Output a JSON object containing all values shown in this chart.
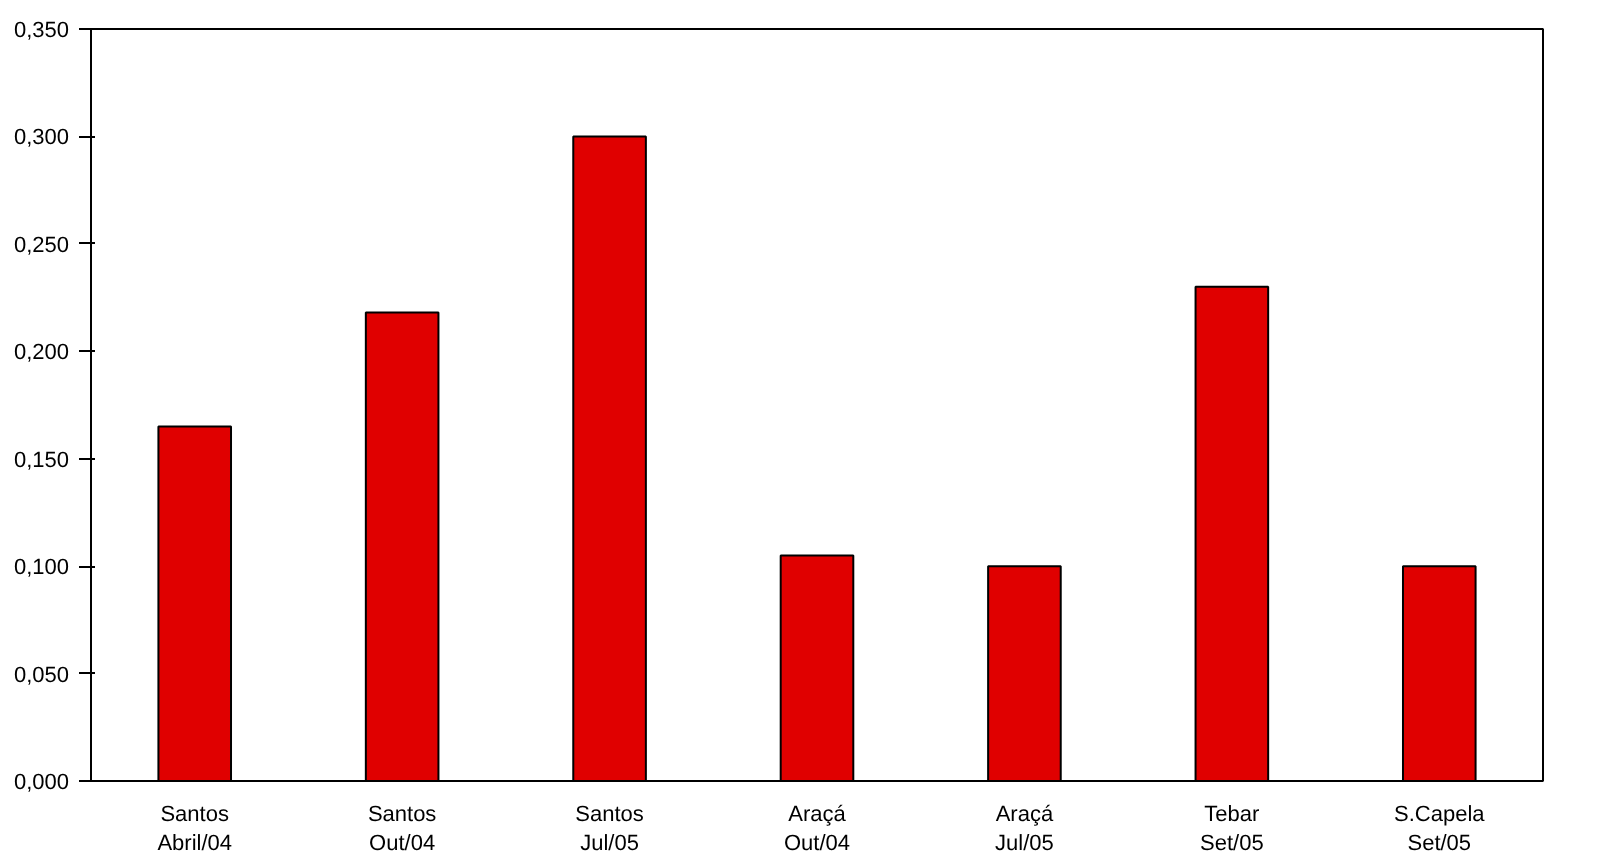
{
  "chart_data": {
    "type": "bar",
    "categories": [
      "Santos\nAbril/04",
      "Santos\nOut/04",
      "Santos\nJul/05",
      "Araçá\nOut/04",
      "Araçá\nJul/05",
      "Tebar\nSet/05",
      "S.Capela\nSet/05"
    ],
    "values": [
      0.165,
      0.218,
      0.3,
      0.105,
      0.1,
      0.23,
      0.1
    ],
    "color": "#e00000",
    "ylim": [
      0,
      0.35
    ],
    "yticks": [
      {
        "value": 0,
        "label": "0,000"
      },
      {
        "value": 0.05,
        "label": "0,050"
      },
      {
        "value": 0.1,
        "label": "0,100"
      },
      {
        "value": 0.15,
        "label": "0,150"
      },
      {
        "value": 0.2,
        "label": "0,200"
      },
      {
        "value": 0.25,
        "label": "0,250"
      },
      {
        "value": 0.3,
        "label": "0,300"
      },
      {
        "value": 0.35,
        "label": "0,350"
      }
    ],
    "grid": false
  }
}
